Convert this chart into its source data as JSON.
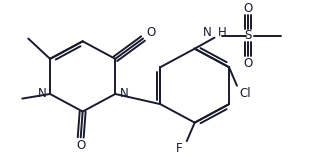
{
  "background_color": "#ffffff",
  "line_color": "#1a1a2e",
  "line_width": 1.4,
  "font_size": 8.5,
  "figsize": [
    3.18,
    1.57
  ],
  "dpi": 100,
  "xlim": [
    0,
    318
  ],
  "ylim": [
    0,
    157
  ]
}
